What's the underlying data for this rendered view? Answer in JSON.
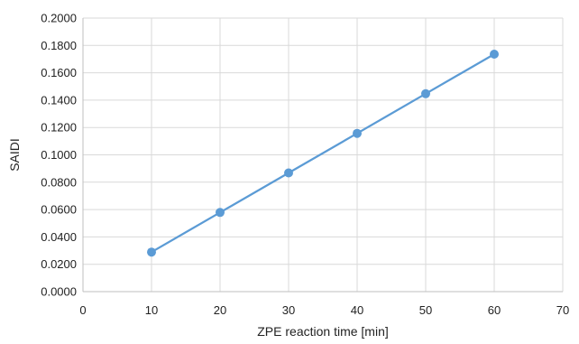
{
  "chart_data": {
    "type": "line",
    "title": "",
    "xlabel": "ZPE reaction time  [min]",
    "ylabel": "SAIDI",
    "xlim": [
      0,
      70
    ],
    "ylim": [
      0,
      0.2
    ],
    "x_ticks": [
      0,
      10,
      20,
      30,
      40,
      50,
      60,
      70
    ],
    "x_tick_labels": [
      "0",
      "10",
      "20",
      "30",
      "40",
      "50",
      "60",
      "70"
    ],
    "y_ticks": [
      0,
      0.02,
      0.04,
      0.06,
      0.08,
      0.1,
      0.12,
      0.14,
      0.16,
      0.18,
      0.2
    ],
    "y_tick_labels": [
      "0.0000",
      "0.0200",
      "0.0400",
      "0.0600",
      "0.0800",
      "0.1000",
      "0.1200",
      "0.1400",
      "0.1600",
      "0.1800",
      "0.2000"
    ],
    "grid": true,
    "legend": "none",
    "series": [
      {
        "color": "#5b9bd5",
        "x": [
          10,
          20,
          30,
          40,
          50,
          60
        ],
        "y": [
          0.0289,
          0.0579,
          0.0868,
          0.1157,
          0.1447,
          0.1736
        ]
      }
    ]
  }
}
